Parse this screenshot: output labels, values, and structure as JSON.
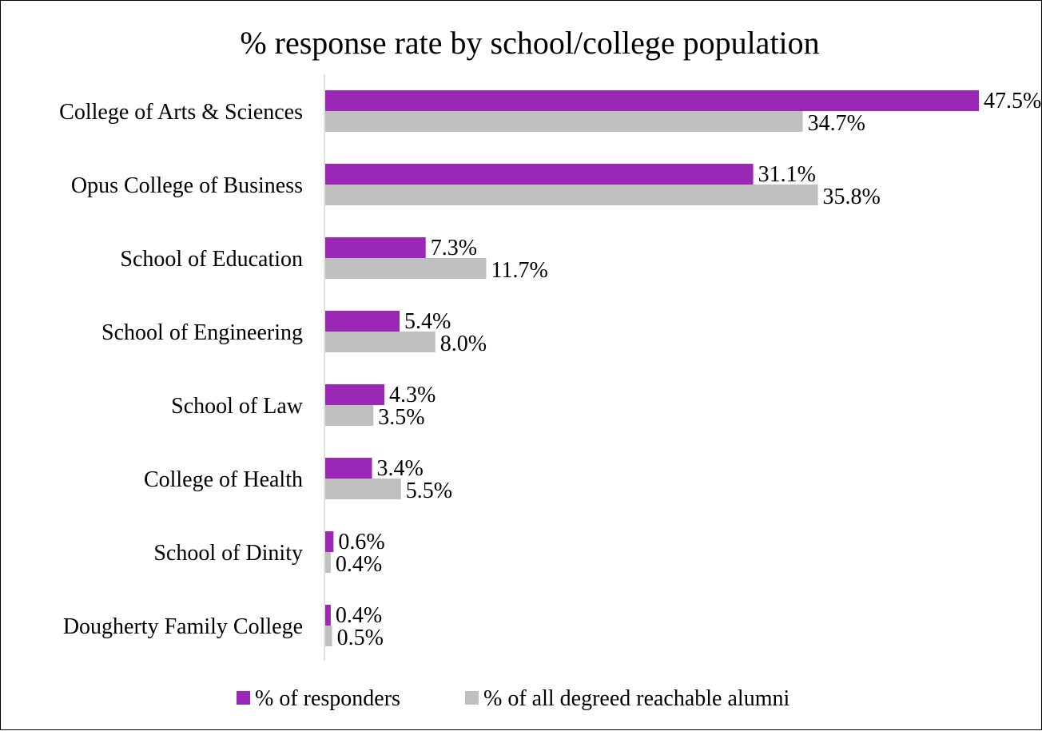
{
  "chart_data": {
    "type": "bar",
    "orientation": "horizontal",
    "title": "% response rate by school/college population",
    "xlabel": "",
    "ylabel": "",
    "categories": [
      "College of Arts & Sciences",
      "Opus College of Business",
      "School of Education",
      "School of Engineering",
      "School of Law",
      "College of Health",
      "School of Dinity",
      "Dougherty Family College"
    ],
    "series": [
      {
        "name": "% of responders",
        "color": "#9b27b7",
        "values": [
          47.5,
          31.1,
          7.3,
          5.4,
          4.3,
          3.4,
          0.6,
          0.4
        ],
        "labels": [
          "47.5%",
          "31.1%",
          "7.3%",
          "5.4%",
          "4.3%",
          "3.4%",
          "0.6%",
          "0.4%"
        ]
      },
      {
        "name": "% of all degreed reachable alumni",
        "color": "#bfbfbf",
        "values": [
          34.7,
          35.8,
          11.7,
          8.0,
          3.5,
          5.5,
          0.4,
          0.5
        ],
        "labels": [
          "34.7%",
          "35.8%",
          "11.7%",
          "8.0%",
          "3.5%",
          "5.5%",
          "0.4%",
          "0.5%"
        ]
      }
    ],
    "xlim": [
      0,
      47.5
    ],
    "grid": false,
    "legend_position": "bottom"
  }
}
